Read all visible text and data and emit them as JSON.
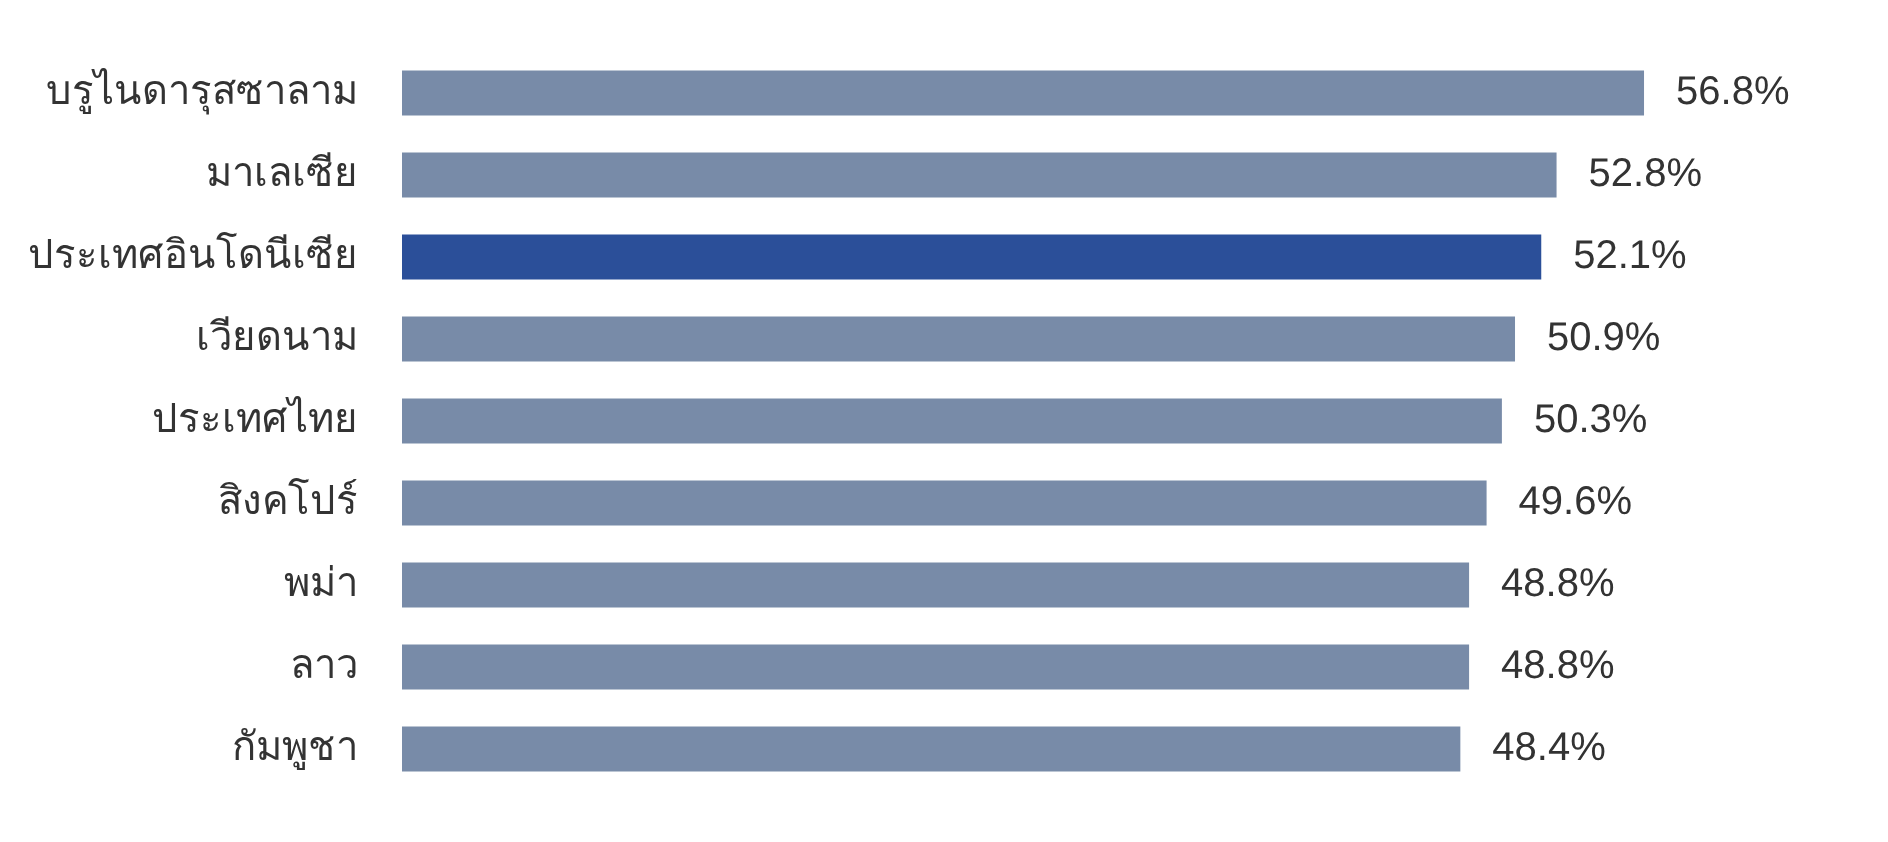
{
  "chart_data": {
    "type": "bar",
    "orientation": "horizontal",
    "categories": [
      "บรูไนดารุสซาลาม",
      "มาเลเซีย",
      "ประเทศอินโดนีเซีย",
      "เวียดนาม",
      "ประเทศไทย",
      "สิงคโปร์",
      "พม่า",
      "ลาว",
      "กัมพูชา"
    ],
    "values": [
      56.8,
      52.8,
      52.1,
      50.9,
      50.3,
      49.6,
      48.8,
      48.8,
      48.4
    ],
    "colors": [
      "#788ba8",
      "#788ba8",
      "#2b4f99",
      "#788ba8",
      "#788ba8",
      "#788ba8",
      "#788ba8",
      "#788ba8",
      "#788ba8"
    ],
    "value_labels": [
      "56.8%",
      "52.8%",
      "52.1%",
      "50.9%",
      "50.3%",
      "49.6%",
      "48.8%",
      "48.8%",
      "48.4%"
    ],
    "tick_labels": "y"
  }
}
